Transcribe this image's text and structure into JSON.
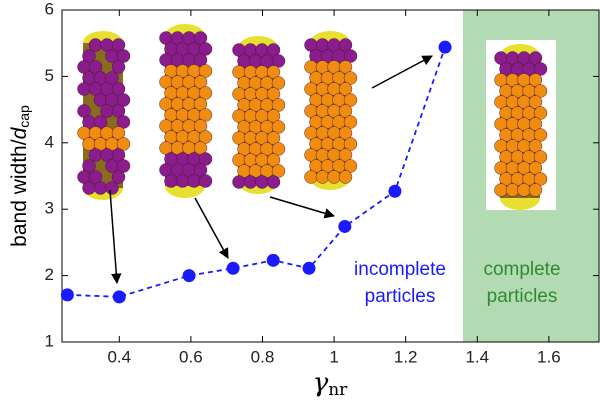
{
  "chart_data": {
    "type": "line",
    "x": [
      0.255,
      0.4,
      0.595,
      0.718,
      0.83,
      0.93,
      1.03,
      1.17,
      1.31
    ],
    "series": [
      {
        "color": "#1a1aff",
        "values": [
          1.71,
          1.68,
          2.0,
          2.11,
          2.23,
          2.11,
          2.74,
          3.27,
          5.44
        ]
      }
    ],
    "xlim": [
      0.24,
      1.74
    ],
    "ylim": [
      1,
      6
    ],
    "xticks": [
      0.4,
      0.6,
      0.8,
      1,
      1.2,
      1.4,
      1.6
    ],
    "yticks": [
      1,
      2,
      3,
      4,
      5,
      6
    ],
    "x_label": {
      "main": "γ",
      "sub": "nr"
    },
    "y_label": {
      "main": "band width/",
      "italic": "d",
      "sub": "cap"
    },
    "shaded_region": {
      "x": [
        1.36,
        1.74
      ],
      "color": "#b3dbb3"
    },
    "annotations": [
      {
        "lines": [
          "incomplete",
          "particles"
        ],
        "color": "#1a1aff"
      },
      {
        "lines": [
          "complete",
          "particles"
        ],
        "color": "#2e8b2e"
      }
    ]
  }
}
